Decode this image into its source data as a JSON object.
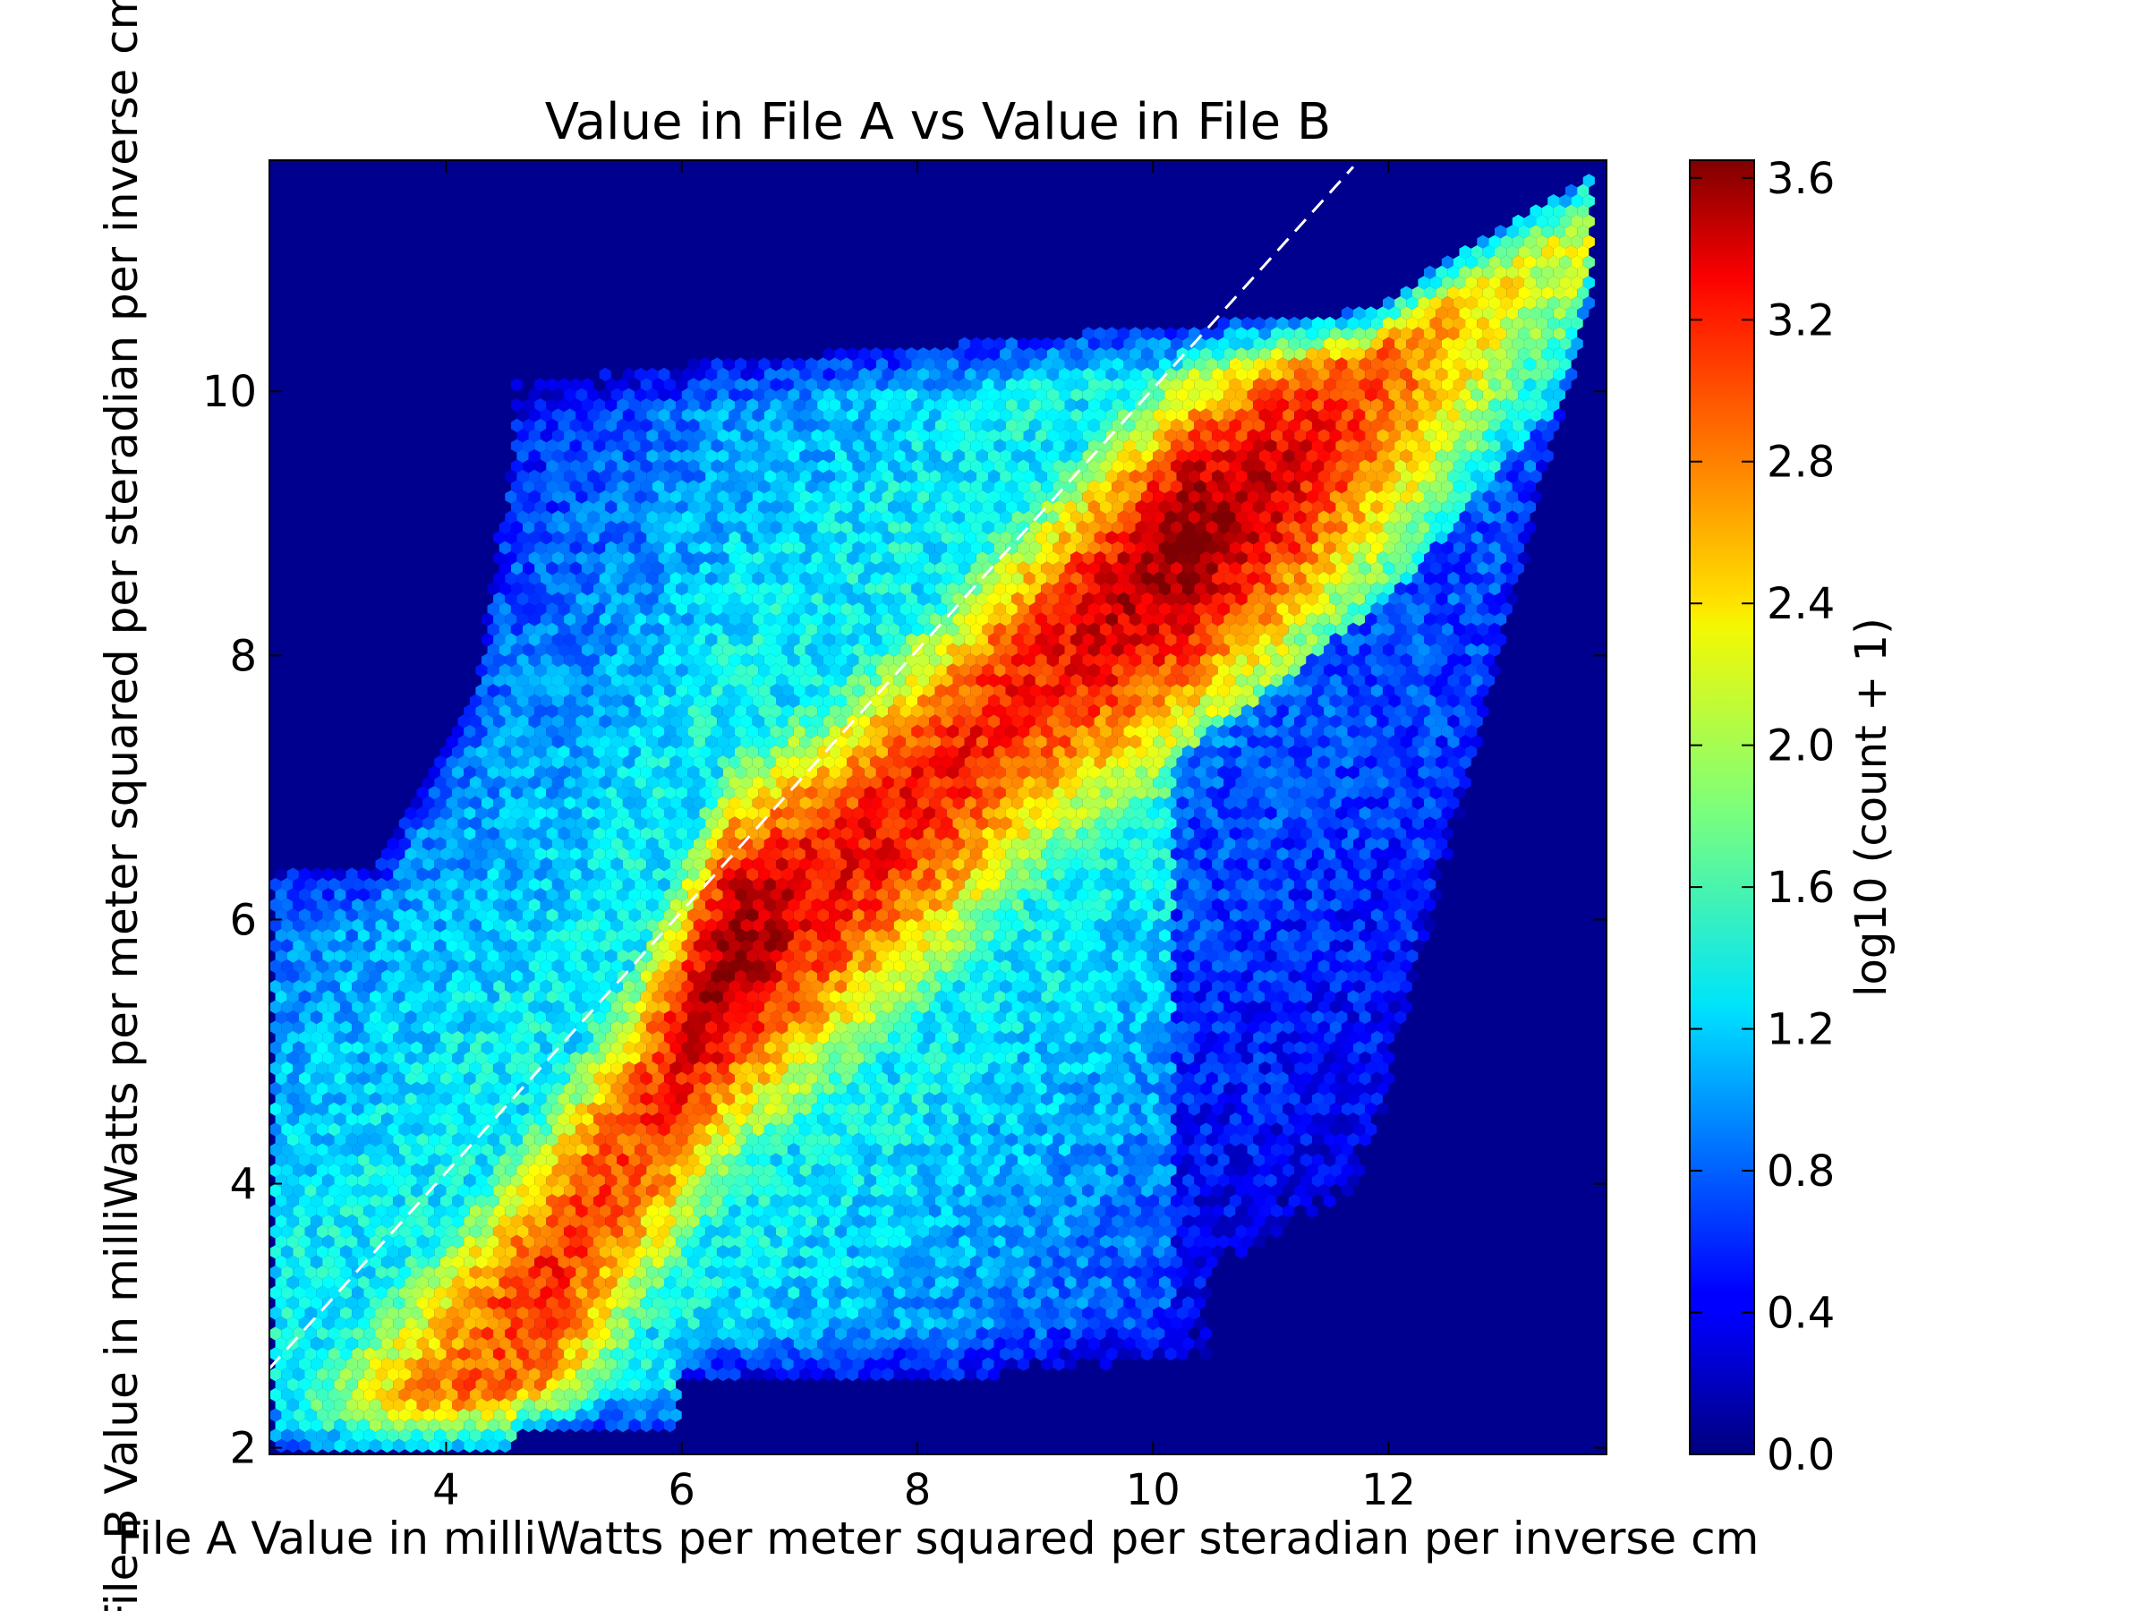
{
  "chart_data": {
    "type": "heatmap",
    "subtype": "hexbin",
    "title": "Value in File A vs Value in File B",
    "xlabel": "File A Value in milliWatts per meter squared per steradian per inverse cm",
    "ylabel": "File B Value in milliWatts per meter squared per steradian per inverse cm",
    "xlim": [
      2.5,
      13.85
    ],
    "ylim": [
      1.95,
      11.75
    ],
    "xticks": [
      4,
      6,
      8,
      10,
      12
    ],
    "yticks": [
      2,
      4,
      6,
      8,
      10
    ],
    "xtick_labels": [
      "4",
      "6",
      "8",
      "10",
      "12"
    ],
    "ytick_labels": [
      "2",
      "4",
      "6",
      "8",
      "10"
    ],
    "colorbar": {
      "label": "log10 (count + 1)",
      "range": [
        0.0,
        3.65
      ],
      "ticks": [
        0.0,
        0.4,
        0.8,
        1.2,
        1.6,
        2.0,
        2.4,
        2.8,
        3.2,
        3.6
      ],
      "tick_labels": [
        "0.0",
        "0.4",
        "0.8",
        "1.2",
        "1.6",
        "2.0",
        "2.4",
        "2.8",
        "3.2",
        "3.6"
      ],
      "colormap": "jet"
    },
    "reference_line": {
      "style": "dashed",
      "color": "#ffffff",
      "points": [
        [
          2.5,
          2.6
        ],
        [
          11.7,
          11.7
        ]
      ]
    },
    "background_color": "#00008f",
    "density_ridge": [
      {
        "x": 4.8,
        "y": 3.2,
        "value": 3.05
      },
      {
        "x": 5.6,
        "y": 4.4,
        "value": 2.9
      },
      {
        "x": 6.4,
        "y": 5.8,
        "value": 3.55
      },
      {
        "x": 7.2,
        "y": 6.3,
        "value": 3.2
      },
      {
        "x": 8.2,
        "y": 7.1,
        "value": 3.1
      },
      {
        "x": 9.0,
        "y": 7.9,
        "value": 3.1
      },
      {
        "x": 10.3,
        "y": 8.9,
        "value": 3.6
      },
      {
        "x": 11.1,
        "y": 9.4,
        "value": 3.3
      },
      {
        "x": 12.2,
        "y": 10.2,
        "value": 2.7
      },
      {
        "x": 13.3,
        "y": 11.4,
        "value": 2.2
      }
    ]
  }
}
